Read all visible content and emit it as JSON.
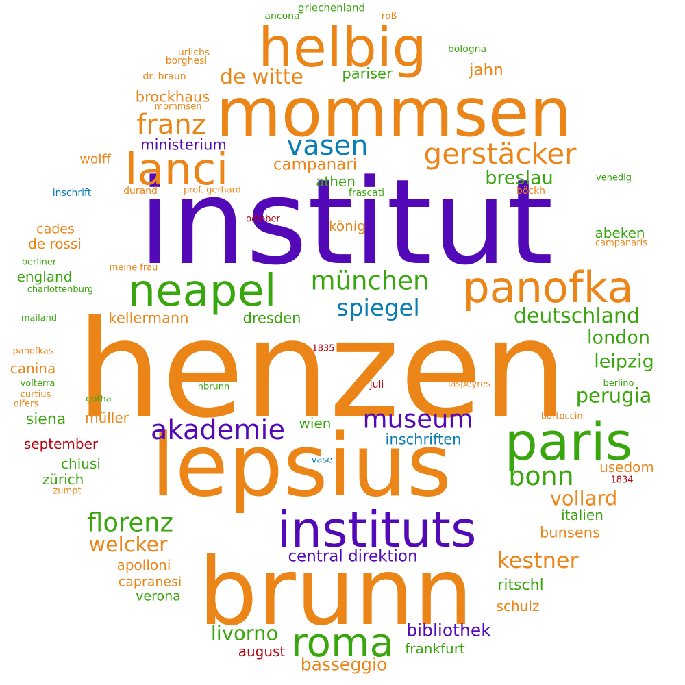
{
  "colors": {
    "orange": "#ec8518",
    "purple": "#5409b9",
    "green": "#3aa60e",
    "blue": "#0a7db5",
    "red": "#b5020e"
  },
  "words": [
    {
      "text": "henzen",
      "color": "orange",
      "weight": 1.0
    },
    {
      "text": "institut",
      "color": "purple",
      "weight": 0.98
    },
    {
      "text": "brunn",
      "color": "orange",
      "weight": 0.8
    },
    {
      "text": "lepsius",
      "color": "orange",
      "weight": 0.75
    },
    {
      "text": "mommsen",
      "color": "orange",
      "weight": 0.6
    },
    {
      "text": "helbig",
      "color": "orange",
      "weight": 0.48
    },
    {
      "text": "paris",
      "color": "green",
      "weight": 0.45
    },
    {
      "text": "instituts",
      "color": "purple",
      "weight": 0.43
    },
    {
      "text": "lanci",
      "color": "orange",
      "weight": 0.38
    },
    {
      "text": "neapel",
      "color": "green",
      "weight": 0.38
    },
    {
      "text": "panofka",
      "color": "orange",
      "weight": 0.37
    },
    {
      "text": "roma",
      "color": "green",
      "weight": 0.34
    },
    {
      "text": "gerstäcker",
      "color": "orange",
      "weight": 0.25
    },
    {
      "text": "vasen",
      "color": "blue",
      "weight": 0.24
    },
    {
      "text": "franz",
      "color": "orange",
      "weight": 0.24
    },
    {
      "text": "akademie",
      "color": "purple",
      "weight": 0.24
    },
    {
      "text": "bonn",
      "color": "green",
      "weight": 0.23
    },
    {
      "text": "münchen",
      "color": "green",
      "weight": 0.22
    },
    {
      "text": "museum",
      "color": "purple",
      "weight": 0.22
    },
    {
      "text": "florenz",
      "color": "green",
      "weight": 0.22
    },
    {
      "text": "spiegel",
      "color": "blue",
      "weight": 0.2
    },
    {
      "text": "kestner",
      "color": "orange",
      "weight": 0.19
    },
    {
      "text": "de witte",
      "color": "orange",
      "weight": 0.18
    },
    {
      "text": "deutschland",
      "color": "green",
      "weight": 0.18
    },
    {
      "text": "welcker",
      "color": "orange",
      "weight": 0.18
    },
    {
      "text": "vollard",
      "color": "orange",
      "weight": 0.17
    },
    {
      "text": "perugia",
      "color": "green",
      "weight": 0.17
    },
    {
      "text": "livorno",
      "color": "green",
      "weight": 0.17
    },
    {
      "text": "london",
      "color": "green",
      "weight": 0.16
    },
    {
      "text": "leipzig",
      "color": "green",
      "weight": 0.16
    },
    {
      "text": "breslau",
      "color": "green",
      "weight": 0.16
    },
    {
      "text": "basseggio",
      "color": "orange",
      "weight": 0.15
    },
    {
      "text": "bibliothek",
      "color": "purple",
      "weight": 0.15
    },
    {
      "text": "campanari",
      "color": "orange",
      "weight": 0.14
    },
    {
      "text": "central direktion",
      "color": "purple",
      "weight": 0.14
    },
    {
      "text": "jahn",
      "color": "orange",
      "weight": 0.13
    },
    {
      "text": "ritschl",
      "color": "green",
      "weight": 0.13
    },
    {
      "text": "siena",
      "color": "green",
      "weight": 0.13
    },
    {
      "text": "brockhaus",
      "color": "orange",
      "weight": 0.12
    },
    {
      "text": "pariser",
      "color": "green",
      "weight": 0.12
    },
    {
      "text": "ministerium",
      "color": "purple",
      "weight": 0.12
    },
    {
      "text": "kellermann",
      "color": "orange",
      "weight": 0.12
    },
    {
      "text": "dresden",
      "color": "green",
      "weight": 0.12
    },
    {
      "text": "inschriften",
      "color": "blue",
      "weight": 0.12
    },
    {
      "text": "bunsens",
      "color": "orange",
      "weight": 0.12
    },
    {
      "text": "apolloni",
      "color": "orange",
      "weight": 0.11
    },
    {
      "text": "abeken",
      "color": "green",
      "weight": 0.11
    },
    {
      "text": "italien",
      "color": "green",
      "weight": 0.11
    },
    {
      "text": "schulz",
      "color": "orange",
      "weight": 0.11
    },
    {
      "text": "frankfurt",
      "color": "green",
      "weight": 0.11
    },
    {
      "text": "england",
      "color": "green",
      "weight": 0.11
    },
    {
      "text": "de rossi",
      "color": "orange",
      "weight": 0.11
    },
    {
      "text": "usedom",
      "color": "orange",
      "weight": 0.11
    },
    {
      "text": "athen",
      "color": "green",
      "weight": 0.11
    },
    {
      "text": "könig",
      "color": "orange",
      "weight": 0.11
    },
    {
      "text": "wien",
      "color": "green",
      "weight": 0.11
    },
    {
      "text": "chiusi",
      "color": "green",
      "weight": 0.11
    },
    {
      "text": "zürich",
      "color": "green",
      "weight": 0.11
    },
    {
      "text": "canina",
      "color": "orange",
      "weight": 0.11
    },
    {
      "text": "müller",
      "color": "orange",
      "weight": 0.11
    },
    {
      "text": "september",
      "color": "red",
      "weight": 0.11
    },
    {
      "text": "august",
      "color": "red",
      "weight": 0.11
    },
    {
      "text": "wolff",
      "color": "orange",
      "weight": 0.1
    },
    {
      "text": "cades",
      "color": "orange",
      "weight": 0.1
    },
    {
      "text": "capranesi",
      "color": "orange",
      "weight": 0.1
    },
    {
      "text": "verona",
      "color": "green",
      "weight": 0.1
    },
    {
      "text": "griechenland",
      "color": "green",
      "weight": 0.08
    },
    {
      "text": "ancona",
      "color": "green",
      "weight": 0.07
    },
    {
      "text": "roß",
      "color": "orange",
      "weight": 0.07
    },
    {
      "text": "bologna",
      "color": "green",
      "weight": 0.07
    },
    {
      "text": "urlichs",
      "color": "orange",
      "weight": 0.07
    },
    {
      "text": "borghesi",
      "color": "orange",
      "weight": 0.07
    },
    {
      "text": "dr. braun",
      "color": "orange",
      "weight": 0.07
    },
    {
      "text": "mommsen",
      "color": "orange",
      "weight": 0.06
    },
    {
      "text": "inschrift",
      "color": "blue",
      "weight": 0.07
    },
    {
      "text": "durand",
      "color": "orange",
      "weight": 0.07
    },
    {
      "text": "prof. gerhard",
      "color": "orange",
      "weight": 0.06
    },
    {
      "text": "frascati",
      "color": "green",
      "weight": 0.07
    },
    {
      "text": "böckh",
      "color": "orange",
      "weight": 0.07
    },
    {
      "text": "venedig",
      "color": "green",
      "weight": 0.06
    },
    {
      "text": "october",
      "color": "red",
      "weight": 0.06
    },
    {
      "text": "campanaris",
      "color": "orange",
      "weight": 0.06
    },
    {
      "text": "berliner",
      "color": "green",
      "weight": 0.06
    },
    {
      "text": "meine frau",
      "color": "orange",
      "weight": 0.06
    },
    {
      "text": "charlottenburg",
      "color": "green",
      "weight": 0.06
    },
    {
      "text": "mailand",
      "color": "green",
      "weight": 0.06
    },
    {
      "text": "panofkas",
      "color": "orange",
      "weight": 0.06
    },
    {
      "text": "1835",
      "color": "red",
      "weight": 0.06
    },
    {
      "text": "volterra",
      "color": "green",
      "weight": 0.06
    },
    {
      "text": "hbrunn",
      "color": "green",
      "weight": 0.06
    },
    {
      "text": "juli",
      "color": "red",
      "weight": 0.06
    },
    {
      "text": "laspeyres",
      "color": "orange",
      "weight": 0.06
    },
    {
      "text": "berlino",
      "color": "green",
      "weight": 0.06
    },
    {
      "text": "curtius",
      "color": "orange",
      "weight": 0.06
    },
    {
      "text": "olfers",
      "color": "orange",
      "weight": 0.06
    },
    {
      "text": "gotha",
      "color": "green",
      "weight": 0.06
    },
    {
      "text": "bartoccini",
      "color": "orange",
      "weight": 0.06
    },
    {
      "text": "vase",
      "color": "blue",
      "weight": 0.06
    },
    {
      "text": "1834",
      "color": "red",
      "weight": 0.06
    },
    {
      "text": "zumpt",
      "color": "orange",
      "weight": 0.06
    }
  ]
}
